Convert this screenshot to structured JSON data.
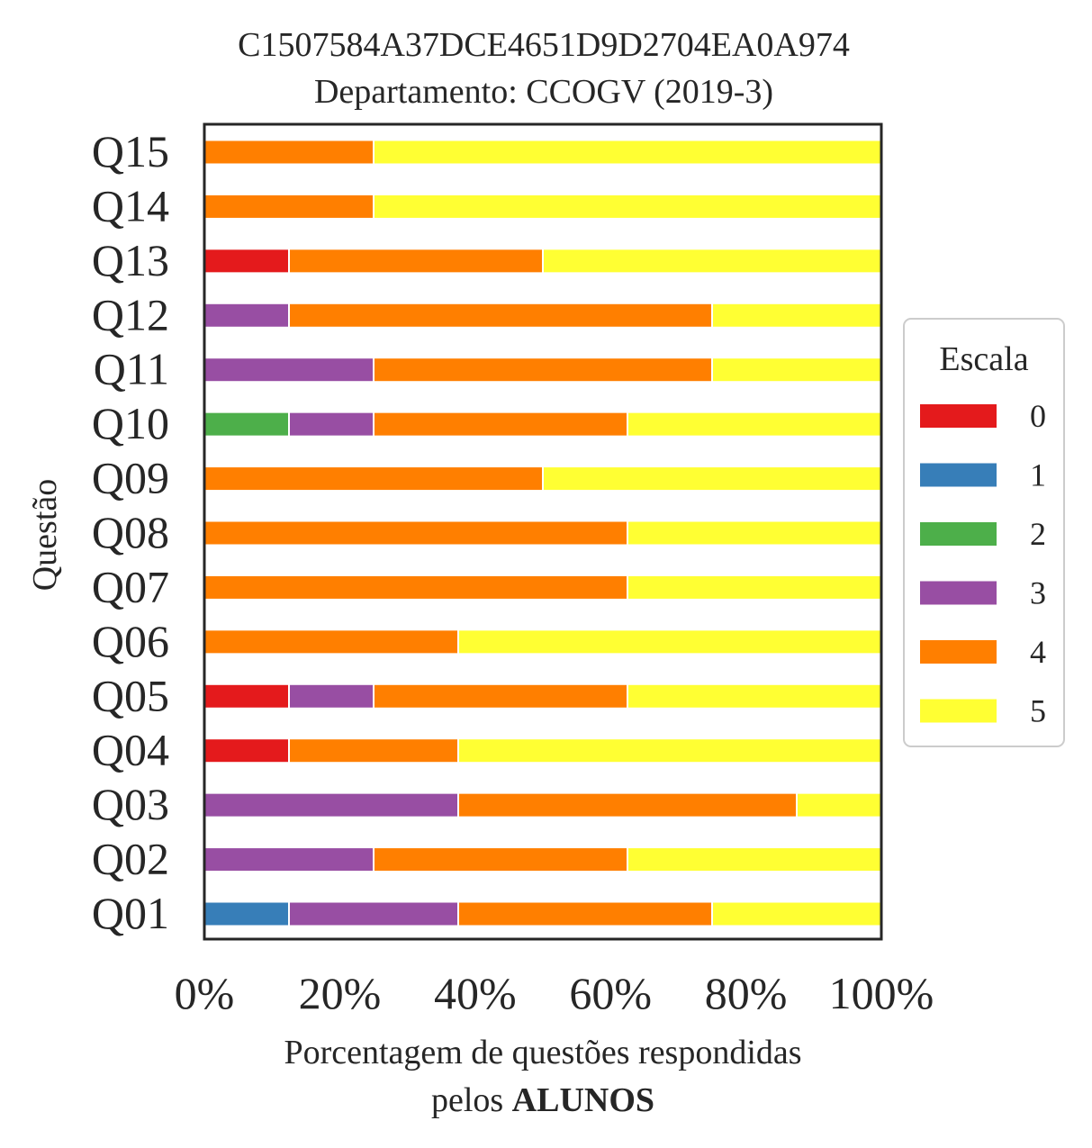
{
  "chart_data": {
    "type": "bar",
    "orientation": "horizontal",
    "stacked": true,
    "title": "C1507584A37DCE4651D9D2704EA0A974",
    "subtitle": "Departamento: CCOGV (2019-3)",
    "xlabel": "Porcentagem de questões respondidas",
    "xlabel_line2_prefix": "pelos ",
    "xlabel_line2_bold": "ALUNOS",
    "ylabel": "Questão",
    "xlim": [
      0,
      100
    ],
    "x_ticks": [
      0,
      20,
      40,
      60,
      80,
      100
    ],
    "x_tick_labels": [
      "0%",
      "20%",
      "40%",
      "60%",
      "80%",
      "100%"
    ],
    "grid": false,
    "legend": {
      "title": "Escala",
      "placement": "right"
    },
    "categories": [
      "Q01",
      "Q02",
      "Q03",
      "Q04",
      "Q05",
      "Q06",
      "Q07",
      "Q08",
      "Q09",
      "Q10",
      "Q11",
      "Q12",
      "Q13",
      "Q14",
      "Q15"
    ],
    "series": [
      {
        "name": "0",
        "color": "#e41a1c",
        "values": [
          0,
          0,
          0,
          12.5,
          12.5,
          0,
          0,
          0,
          0,
          0,
          0,
          0,
          12.5,
          0,
          0
        ]
      },
      {
        "name": "1",
        "color": "#377eb8",
        "values": [
          12.5,
          0,
          0,
          0,
          0,
          0,
          0,
          0,
          0,
          0,
          0,
          0,
          0,
          0,
          0
        ]
      },
      {
        "name": "2",
        "color": "#4daf4a",
        "values": [
          0,
          0,
          0,
          0,
          0,
          0,
          0,
          0,
          0,
          12.5,
          0,
          0,
          0,
          0,
          0
        ]
      },
      {
        "name": "3",
        "color": "#984ea3",
        "values": [
          25,
          25,
          37.5,
          0,
          12.5,
          0,
          0,
          0,
          0,
          12.5,
          25,
          12.5,
          0,
          0,
          0
        ]
      },
      {
        "name": "4",
        "color": "#ff7f00",
        "values": [
          37.5,
          37.5,
          50,
          25,
          37.5,
          37.5,
          62.5,
          62.5,
          50,
          37.5,
          50,
          62.5,
          37.5,
          25,
          25
        ]
      },
      {
        "name": "5",
        "color": "#ffff33",
        "values": [
          25,
          37.5,
          12.5,
          62.5,
          37.5,
          62.5,
          37.5,
          37.5,
          50,
          37.5,
          25,
          25,
          50,
          75,
          75
        ]
      }
    ]
  }
}
